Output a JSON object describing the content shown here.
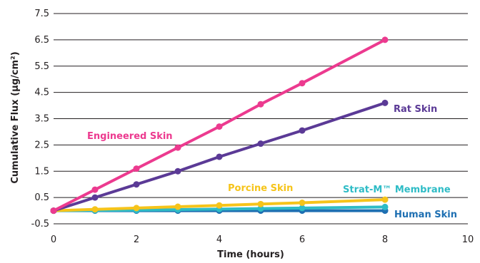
{
  "chart_data": {
    "type": "line",
    "title": "",
    "xlabel": "Time (hours)",
    "ylabel": "Cumulative Flux (µg/cm²)",
    "xlim": [
      0,
      10
    ],
    "ylim": [
      -0.5,
      7.5
    ],
    "x_ticks": [
      0,
      2,
      4,
      6,
      8,
      10
    ],
    "y_ticks": [
      -0.5,
      0.5,
      1.5,
      2.5,
      3.5,
      4.5,
      5.5,
      6.5,
      7.5
    ],
    "x_tick_labels": [
      "0",
      "2",
      "4",
      "6",
      "8",
      "10"
    ],
    "y_tick_labels": [
      "-0.5",
      "0.5",
      "1.5",
      "2.5",
      "3.5",
      "4.5",
      "5.5",
      "6.5",
      "7.5"
    ],
    "grid": "horizontal",
    "legend": "inline labels",
    "series": [
      {
        "name": "Engineered Skin",
        "color": "#ec3a8f",
        "x": [
          0,
          1,
          2,
          3,
          4,
          5,
          6,
          8
        ],
        "y": [
          0,
          0.8,
          1.6,
          2.4,
          3.2,
          4.05,
          4.85,
          6.5
        ]
      },
      {
        "name": "Rat Skin",
        "color": "#5b3a96",
        "x": [
          0,
          1,
          2,
          3,
          4,
          5,
          6,
          8
        ],
        "y": [
          0,
          0.5,
          1.0,
          1.5,
          2.05,
          2.55,
          3.05,
          4.1
        ]
      },
      {
        "name": "Porcine Skin",
        "color": "#f6c41a",
        "x": [
          0,
          1,
          2,
          3,
          4,
          5,
          6,
          8
        ],
        "y": [
          0,
          0.05,
          0.1,
          0.15,
          0.2,
          0.25,
          0.3,
          0.42
        ]
      },
      {
        "name": "Strat-M™ Membrane",
        "color": "#2ebcc6",
        "x": [
          0,
          1,
          2,
          3,
          4,
          5,
          6,
          8
        ],
        "y": [
          0,
          0.01,
          0.02,
          0.04,
          0.06,
          0.08,
          0.1,
          0.14
        ]
      },
      {
        "name": "Human Skin",
        "color": "#1e6fb2",
        "x": [
          0,
          1,
          2,
          3,
          4,
          5,
          6,
          8
        ],
        "y": [
          0,
          0,
          0,
          0,
          0,
          0,
          0,
          0
        ]
      }
    ]
  }
}
